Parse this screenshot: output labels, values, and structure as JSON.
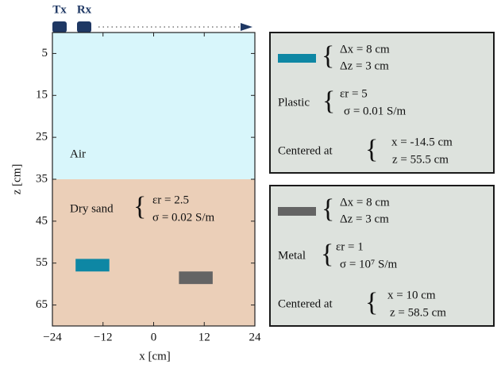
{
  "header": {
    "tx": "Tx",
    "rx": "Rx"
  },
  "plot": {
    "xlabel": "x [cm]",
    "ylabel": "z [cm]",
    "xlim": [
      -24,
      24
    ],
    "ylim": [
      0,
      70
    ],
    "xticks": [
      {
        "value": -24,
        "label": "−24"
      },
      {
        "value": -12,
        "label": "−12"
      },
      0,
      12,
      24
    ],
    "yticks": [
      5,
      15,
      25,
      35,
      45,
      55,
      65
    ]
  },
  "layers": [
    {
      "name": "Air",
      "top": 0,
      "bottom": 35,
      "color": "#d8f6fb"
    },
    {
      "name": "Dry sand",
      "top": 35,
      "bottom": 70,
      "color": "#ebcfb8",
      "props": [
        "εr = 2.5",
        "σ = 0.02 S/m"
      ]
    }
  ],
  "objects": [
    {
      "color": "#0e87a4",
      "x": -14.5,
      "z": 55.5,
      "dx": 8,
      "dz": 3,
      "dims": [
        "Δx = 8 cm",
        "Δz = 3 cm"
      ],
      "material": "Plastic",
      "props": [
        "εr = 5",
        "σ = 0.01 S/m"
      ],
      "center_label": "Centered at",
      "center": [
        "x = -14.5 cm",
        "z = 55.5 cm"
      ]
    },
    {
      "color": "#646464",
      "x": 10,
      "z": 58.5,
      "dx": 8,
      "dz": 3,
      "dims": [
        "Δx = 8 cm",
        "Δz = 3 cm"
      ],
      "material": "Metal",
      "props": [
        "εr = 1",
        "σ = 10⁷ S/m"
      ],
      "center_label": "Centered at",
      "center": [
        "x = 10 cm",
        "z = 58.5 cm"
      ]
    }
  ]
}
